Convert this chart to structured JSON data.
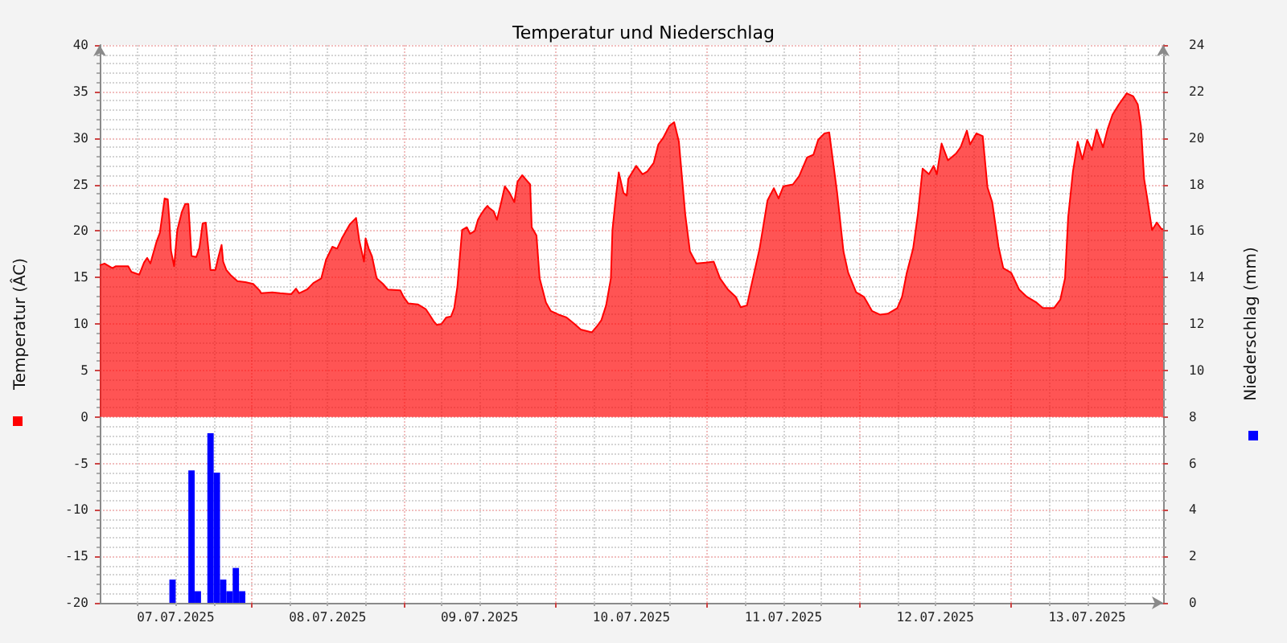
{
  "chart_data": {
    "type": "area",
    "title": "Temperatur und Niederschlag",
    "ylabel": "Temperatur (ÂC)",
    "y2label": "Niederschlag (mm)",
    "xlim": [
      "2025-07-07T00:00",
      "2025-07-14T00:00"
    ],
    "xticks": [
      {
        "value": "2025-07-07T12:00",
        "label": "07.07.2025"
      },
      {
        "value": "2025-07-08T00:00",
        "label": null
      },
      {
        "value": "2025-07-08T12:00",
        "label": "08.07.2025"
      },
      {
        "value": "2025-07-09T00:00",
        "label": null
      },
      {
        "value": "2025-07-09T12:00",
        "label": "09.07.2025"
      },
      {
        "value": "2025-07-10T00:00",
        "label": null
      },
      {
        "value": "2025-07-10T12:00",
        "label": "10.07.2025"
      },
      {
        "value": "2025-07-11T00:00",
        "label": null
      },
      {
        "value": "2025-07-11T12:00",
        "label": "11.07.2025"
      },
      {
        "value": "2025-07-12T00:00",
        "label": null
      },
      {
        "value": "2025-07-12T12:00",
        "label": "12.07.2025"
      },
      {
        "value": "2025-07-13T00:00",
        "label": null
      },
      {
        "value": "2025-07-13T12:00",
        "label": "13.07.2025"
      }
    ],
    "ylim": [
      -20,
      40
    ],
    "yticks": [
      -20,
      -15,
      -10,
      -5,
      0,
      5,
      10,
      15,
      20,
      25,
      30,
      35,
      40
    ],
    "y2lim": [
      0,
      24
    ],
    "y2ticks": [
      0,
      2,
      4,
      6,
      8,
      10,
      12,
      14,
      16,
      18,
      20,
      22,
      24
    ],
    "grid": true,
    "series": [
      {
        "color": "#ff0000",
        "x": [
          "2025-07-07T00:00",
          "2025-07-07T00:45",
          "2025-07-07T02:00",
          "2025-07-07T02:30",
          "2025-07-07T04:30",
          "2025-07-07T05:00",
          "2025-07-07T06:15",
          "2025-07-07T07:00",
          "2025-07-07T07:30",
          "2025-07-07T08:00",
          "2025-07-07T09:00",
          "2025-07-07T09:30",
          "2025-07-07T10:15",
          "2025-07-07T10:45",
          "2025-07-07T11:00",
          "2025-07-07T11:15",
          "2025-07-07T11:45",
          "2025-07-07T12:15",
          "2025-07-07T13:00",
          "2025-07-07T13:30",
          "2025-07-07T14:00",
          "2025-07-07T14:30",
          "2025-07-07T15:15",
          "2025-07-07T15:45",
          "2025-07-07T16:15",
          "2025-07-07T16:45",
          "2025-07-07T17:15",
          "2025-07-07T17:30",
          "2025-07-07T18:15",
          "2025-07-07T18:45",
          "2025-07-07T19:15",
          "2025-07-07T19:30",
          "2025-07-07T20:00",
          "2025-07-07T20:45",
          "2025-07-07T21:45",
          "2025-07-07T23:00",
          "2025-07-08T00:15",
          "2025-07-08T01:15",
          "2025-07-08T01:30",
          "2025-07-08T03:15",
          "2025-07-08T04:30",
          "2025-07-08T06:15",
          "2025-07-08T07:00",
          "2025-07-08T07:30",
          "2025-07-08T08:45",
          "2025-07-08T09:45",
          "2025-07-08T11:00",
          "2025-07-08T11:45",
          "2025-07-08T12:45",
          "2025-07-08T13:30",
          "2025-07-08T14:15",
          "2025-07-08T15:30",
          "2025-07-08T16:30",
          "2025-07-08T17:00",
          "2025-07-08T17:45",
          "2025-07-08T18:00",
          "2025-07-08T18:30",
          "2025-07-08T19:00",
          "2025-07-08T19:45",
          "2025-07-08T20:45",
          "2025-07-08T21:30",
          "2025-07-08T23:30",
          "2025-07-09T00:00",
          "2025-07-09T00:45",
          "2025-07-09T02:15",
          "2025-07-09T03:30",
          "2025-07-09T04:00",
          "2025-07-09T04:45",
          "2025-07-09T05:15",
          "2025-07-09T06:00",
          "2025-07-09T06:45",
          "2025-07-09T07:30",
          "2025-07-09T08:00",
          "2025-07-09T08:30",
          "2025-07-09T09:00",
          "2025-07-09T09:15",
          "2025-07-09T10:00",
          "2025-07-09T10:30",
          "2025-07-09T11:15",
          "2025-07-09T11:45",
          "2025-07-09T12:15",
          "2025-07-09T12:45",
          "2025-07-09T13:15",
          "2025-07-09T13:30",
          "2025-07-09T14:15",
          "2025-07-09T14:45",
          "2025-07-09T15:30",
          "2025-07-09T16:00",
          "2025-07-09T16:45",
          "2025-07-09T17:30",
          "2025-07-09T18:00",
          "2025-07-09T18:45",
          "2025-07-09T19:15",
          "2025-07-09T20:00",
          "2025-07-09T20:15",
          "2025-07-09T21:00",
          "2025-07-09T21:30",
          "2025-07-09T22:30",
          "2025-07-09T23:15",
          "2025-07-10T00:30",
          "2025-07-10T01:45",
          "2025-07-10T03:00",
          "2025-07-10T04:00",
          "2025-07-10T05:45",
          "2025-07-10T06:30",
          "2025-07-10T07:15",
          "2025-07-10T08:00",
          "2025-07-10T08:45",
          "2025-07-10T09:00",
          "2025-07-10T09:30",
          "2025-07-10T10:00",
          "2025-07-10T10:45",
          "2025-07-10T11:15",
          "2025-07-10T11:30",
          "2025-07-10T12:45",
          "2025-07-10T13:45",
          "2025-07-10T14:30",
          "2025-07-10T15:30",
          "2025-07-10T16:15",
          "2025-07-10T17:00",
          "2025-07-10T18:00",
          "2025-07-10T18:45",
          "2025-07-10T19:30",
          "2025-07-10T20:30",
          "2025-07-10T21:15",
          "2025-07-10T22:15",
          "2025-07-10T23:45",
          "2025-07-11T01:00",
          "2025-07-11T02:00",
          "2025-07-11T03:15",
          "2025-07-11T04:30",
          "2025-07-11T05:15",
          "2025-07-11T06:15",
          "2025-07-11T07:00",
          "2025-07-11T08:15",
          "2025-07-11T09:30",
          "2025-07-11T10:30",
          "2025-07-11T11:15",
          "2025-07-11T12:00",
          "2025-07-11T13:30",
          "2025-07-11T14:30",
          "2025-07-11T15:45",
          "2025-07-11T16:45",
          "2025-07-11T17:30",
          "2025-07-11T18:30",
          "2025-07-11T19:15",
          "2025-07-11T20:00",
          "2025-07-11T20:30",
          "2025-07-11T21:30",
          "2025-07-11T22:15",
          "2025-07-11T23:30",
          "2025-07-12T00:45",
          "2025-07-12T02:00",
          "2025-07-12T03:15",
          "2025-07-12T04:30",
          "2025-07-12T06:00",
          "2025-07-12T06:45",
          "2025-07-12T07:30",
          "2025-07-12T08:30",
          "2025-07-12T09:15",
          "2025-07-12T10:00",
          "2025-07-12T11:00",
          "2025-07-12T11:45",
          "2025-07-12T12:15",
          "2025-07-12T13:00",
          "2025-07-12T14:00",
          "2025-07-12T15:15",
          "2025-07-12T16:00",
          "2025-07-12T17:00",
          "2025-07-12T17:30",
          "2025-07-12T18:30",
          "2025-07-12T19:30",
          "2025-07-12T20:15",
          "2025-07-12T21:00",
          "2025-07-12T22:00",
          "2025-07-12T22:45",
          "2025-07-13T00:00",
          "2025-07-13T01:15",
          "2025-07-13T02:30",
          "2025-07-13T04:00",
          "2025-07-13T05:00",
          "2025-07-13T06:45",
          "2025-07-13T07:45",
          "2025-07-13T08:30",
          "2025-07-13T09:00",
          "2025-07-13T09:45",
          "2025-07-13T10:30",
          "2025-07-13T11:15",
          "2025-07-13T12:00",
          "2025-07-13T12:45",
          "2025-07-13T13:30",
          "2025-07-13T14:30",
          "2025-07-13T15:15",
          "2025-07-13T16:00",
          "2025-07-13T17:00",
          "2025-07-13T18:15",
          "2025-07-13T19:15",
          "2025-07-13T20:00",
          "2025-07-13T20:30",
          "2025-07-13T21:00",
          "2025-07-13T21:30",
          "2025-07-13T22:15",
          "2025-07-13T23:00",
          "2025-07-13T23:45",
          "2025-07-14T00:00"
        ],
        "values": [
          16.3,
          16.5,
          16.0,
          16.2,
          16.2,
          15.6,
          15.3,
          16.6,
          17.1,
          16.5,
          18.9,
          19.8,
          23.5,
          23.4,
          21.2,
          17.9,
          16.2,
          20.1,
          22.1,
          22.9,
          22.9,
          17.3,
          17.2,
          18.2,
          20.8,
          20.9,
          17.5,
          15.8,
          15.8,
          17.2,
          18.5,
          16.7,
          15.8,
          15.2,
          14.6,
          14.5,
          14.3,
          13.6,
          13.3,
          13.4,
          13.3,
          13.2,
          13.8,
          13.3,
          13.7,
          14.4,
          14.9,
          16.9,
          18.3,
          18.1,
          19.2,
          20.7,
          21.4,
          19.0,
          16.7,
          19.2,
          18.1,
          17.3,
          14.9,
          14.3,
          13.7,
          13.6,
          12.9,
          12.2,
          12.1,
          11.6,
          11.1,
          10.3,
          9.9,
          10.0,
          10.7,
          10.8,
          11.7,
          14.0,
          18.1,
          20.1,
          20.4,
          19.7,
          20.0,
          21.2,
          21.8,
          22.3,
          22.7,
          22.5,
          22.1,
          21.2,
          23.3,
          24.8,
          24.1,
          23.1,
          25.3,
          26.0,
          25.6,
          25.0,
          20.4,
          19.5,
          14.9,
          12.3,
          11.4,
          11.0,
          10.7,
          10.0,
          9.4,
          9.1,
          9.7,
          10.4,
          12.0,
          14.9,
          20.1,
          23.4,
          26.3,
          24.1,
          23.8,
          25.6,
          27.0,
          26.1,
          26.4,
          27.3,
          29.3,
          30.0,
          31.3,
          31.7,
          29.6,
          21.8,
          17.8,
          16.5,
          16.6,
          16.7,
          14.9,
          13.7,
          12.9,
          11.8,
          12.0,
          14.3,
          18.1,
          23.3,
          24.6,
          23.5,
          24.8,
          25.0,
          25.9,
          27.9,
          28.2,
          29.8,
          30.5,
          30.6,
          26.7,
          24.1,
          17.8,
          15.5,
          13.4,
          12.9,
          11.4,
          11.0,
          11.1,
          11.7,
          12.9,
          15.5,
          18.1,
          21.8,
          26.7,
          26.1,
          27.0,
          26.1,
          29.4,
          27.6,
          28.3,
          29.0,
          30.8,
          29.3,
          30.5,
          30.2,
          24.7,
          23.1,
          18.3,
          16.0,
          15.5,
          13.7,
          12.9,
          12.3,
          11.7,
          11.7,
          12.6,
          14.9,
          21.5,
          26.4,
          29.6,
          27.7,
          29.8,
          28.7,
          30.9,
          29.0,
          31.0,
          32.5,
          33.6,
          34.8,
          34.5,
          33.6,
          31.3,
          25.6,
          23.5,
          20.1,
          20.9,
          20.2,
          20.2
        ]
      },
      {
        "type": "bar",
        "axis": "y2",
        "color": "#0000ff",
        "x": [
          "2025-07-07T11:30",
          "2025-07-07T14:30",
          "2025-07-07T15:30",
          "2025-07-07T17:30",
          "2025-07-07T18:30",
          "2025-07-07T19:30",
          "2025-07-07T20:30",
          "2025-07-07T21:30",
          "2025-07-07T22:30"
        ],
        "values": [
          1.0,
          5.7,
          0.5,
          7.3,
          5.6,
          1.0,
          0.5,
          1.5,
          0.5
        ]
      }
    ]
  }
}
